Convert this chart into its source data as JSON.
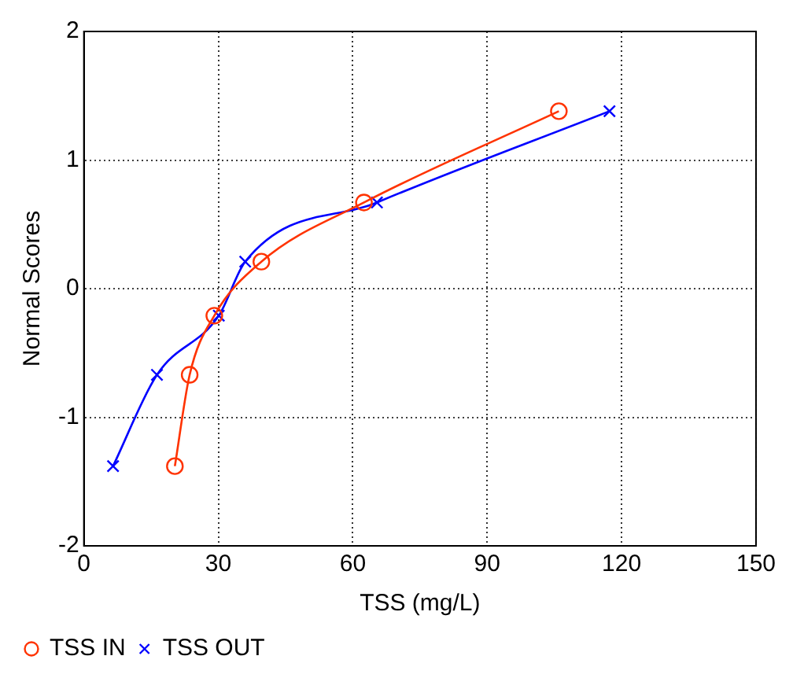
{
  "chart_data": {
    "type": "line",
    "xlabel": "TSS (mg/L)",
    "ylabel": "Normal Scores",
    "xlim": [
      0,
      150
    ],
    "xticks": [
      0,
      30,
      60,
      90,
      120,
      150
    ],
    "ylim": [
      -2,
      2
    ],
    "yticks": [
      -2,
      -1,
      0,
      1,
      2
    ],
    "grid": true,
    "legend": "bottom left",
    "line_style": "solid",
    "series": [
      {
        "name": "TSS IN",
        "color": "#ff3300",
        "marker": "circle",
        "x": [
          20.3,
          23.6,
          29.1,
          39.6,
          62.5,
          106
        ],
        "values": [
          -1.38,
          -0.67,
          -0.21,
          0.21,
          0.67,
          1.38
        ]
      },
      {
        "name": "TSS OUT",
        "color": "#0000ff",
        "marker": "cross",
        "x": [
          6.5,
          16.3,
          30.1,
          36,
          65.4,
          117.3
        ],
        "values": [
          -1.38,
          -0.67,
          -0.21,
          0.21,
          0.67,
          1.38
        ]
      }
    ]
  }
}
